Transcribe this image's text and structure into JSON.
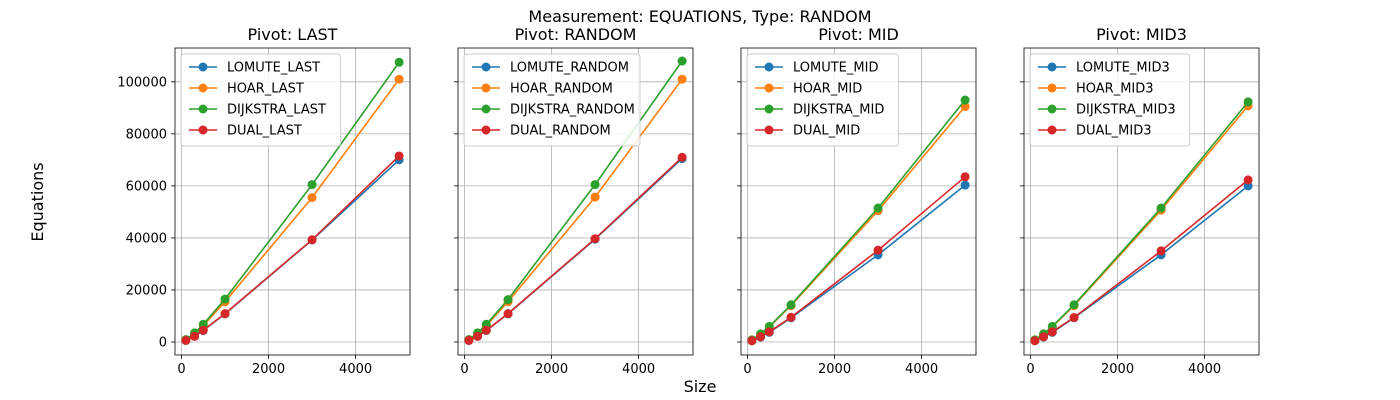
{
  "figure": {
    "suptitle": "Measurement: EQUATIONS, Type: RANDOM",
    "xlabel": "Size",
    "ylabel": "Equations"
  },
  "colors": {
    "series": [
      "#1f77b4",
      "#ff7f0e",
      "#2ca02c",
      "#d62728"
    ],
    "grid": "#b0b0b0"
  },
  "chart_data": [
    {
      "type": "line",
      "title": "Pivot: LAST",
      "x": [
        100,
        300,
        500,
        1000,
        3000,
        5000
      ],
      "xlim": [
        -150,
        5250
      ],
      "ylim": [
        -5000,
        113000
      ],
      "xticks": [
        0,
        2000,
        4000
      ],
      "yticks": [
        0,
        20000,
        40000,
        60000,
        80000,
        100000
      ],
      "grid": true,
      "legend": "top-left",
      "series": [
        {
          "name": "LOMUTE_LAST",
          "values": [
            600,
            2200,
            4400,
            10800,
            39200,
            70000
          ]
        },
        {
          "name": "HOAR_LAST",
          "values": [
            900,
            3300,
            6300,
            15500,
            55500,
            101000
          ]
        },
        {
          "name": "DIJKSTRA_LAST",
          "values": [
            900,
            3500,
            6800,
            16500,
            60500,
            107500
          ]
        },
        {
          "name": "DUAL_LAST",
          "values": [
            600,
            2200,
            4500,
            10900,
            39300,
            71500
          ]
        }
      ]
    },
    {
      "type": "line",
      "title": "Pivot: RANDOM",
      "x": [
        100,
        300,
        500,
        1000,
        3000,
        5000
      ],
      "xlim": [
        -150,
        5250
      ],
      "ylim": [
        -5000,
        113000
      ],
      "xticks": [
        0,
        2000,
        4000
      ],
      "yticks": [
        0,
        20000,
        40000,
        60000,
        80000,
        100000
      ],
      "grid": true,
      "legend": "top-left",
      "series": [
        {
          "name": "LOMUTE_RANDOM",
          "values": [
            600,
            2200,
            4400,
            10800,
            39500,
            70500
          ]
        },
        {
          "name": "HOAR_RANDOM",
          "values": [
            900,
            3300,
            6300,
            15500,
            55700,
            101000
          ]
        },
        {
          "name": "DIJKSTRA_RANDOM",
          "values": [
            900,
            3500,
            6800,
            16300,
            60500,
            108000
          ]
        },
        {
          "name": "DUAL_RANDOM",
          "values": [
            600,
            2200,
            4500,
            10900,
            39700,
            71000
          ]
        }
      ]
    },
    {
      "type": "line",
      "title": "Pivot: MID",
      "x": [
        100,
        300,
        500,
        1000,
        3000,
        5000
      ],
      "xlim": [
        -150,
        5250
      ],
      "ylim": [
        -5000,
        113000
      ],
      "xticks": [
        0,
        2000,
        4000
      ],
      "yticks": [
        0,
        20000,
        40000,
        60000,
        80000,
        100000
      ],
      "grid": true,
      "legend": "top-left",
      "series": [
        {
          "name": "LOMUTE_MID",
          "values": [
            500,
            1900,
            3700,
            9300,
            33500,
            60300
          ]
        },
        {
          "name": "HOAR_MID",
          "values": [
            800,
            3000,
            5800,
            14000,
            50500,
            90500
          ]
        },
        {
          "name": "DIJKSTRA_MID",
          "values": [
            800,
            3100,
            6000,
            14300,
            51500,
            93000
          ]
        },
        {
          "name": "DUAL_MID",
          "values": [
            500,
            2000,
            3900,
            9500,
            35300,
            63500
          ]
        }
      ]
    },
    {
      "type": "line",
      "title": "Pivot: MID3",
      "x": [
        100,
        300,
        500,
        1000,
        3000,
        5000
      ],
      "xlim": [
        -150,
        5250
      ],
      "ylim": [
        -5000,
        113000
      ],
      "xticks": [
        0,
        2000,
        4000
      ],
      "yticks": [
        0,
        20000,
        40000,
        60000,
        80000,
        100000
      ],
      "grid": true,
      "legend": "top-left",
      "series": [
        {
          "name": "LOMUTE_MID3",
          "values": [
            500,
            1900,
            3700,
            9300,
            33500,
            60000
          ]
        },
        {
          "name": "HOAR_MID3",
          "values": [
            800,
            3000,
            5800,
            14000,
            50700,
            90800
          ]
        },
        {
          "name": "DIJKSTRA_MID3",
          "values": [
            800,
            3100,
            6000,
            14300,
            51500,
            92300
          ]
        },
        {
          "name": "DUAL_MID3",
          "values": [
            500,
            2000,
            3900,
            9400,
            35000,
            62300
          ]
        }
      ]
    }
  ]
}
